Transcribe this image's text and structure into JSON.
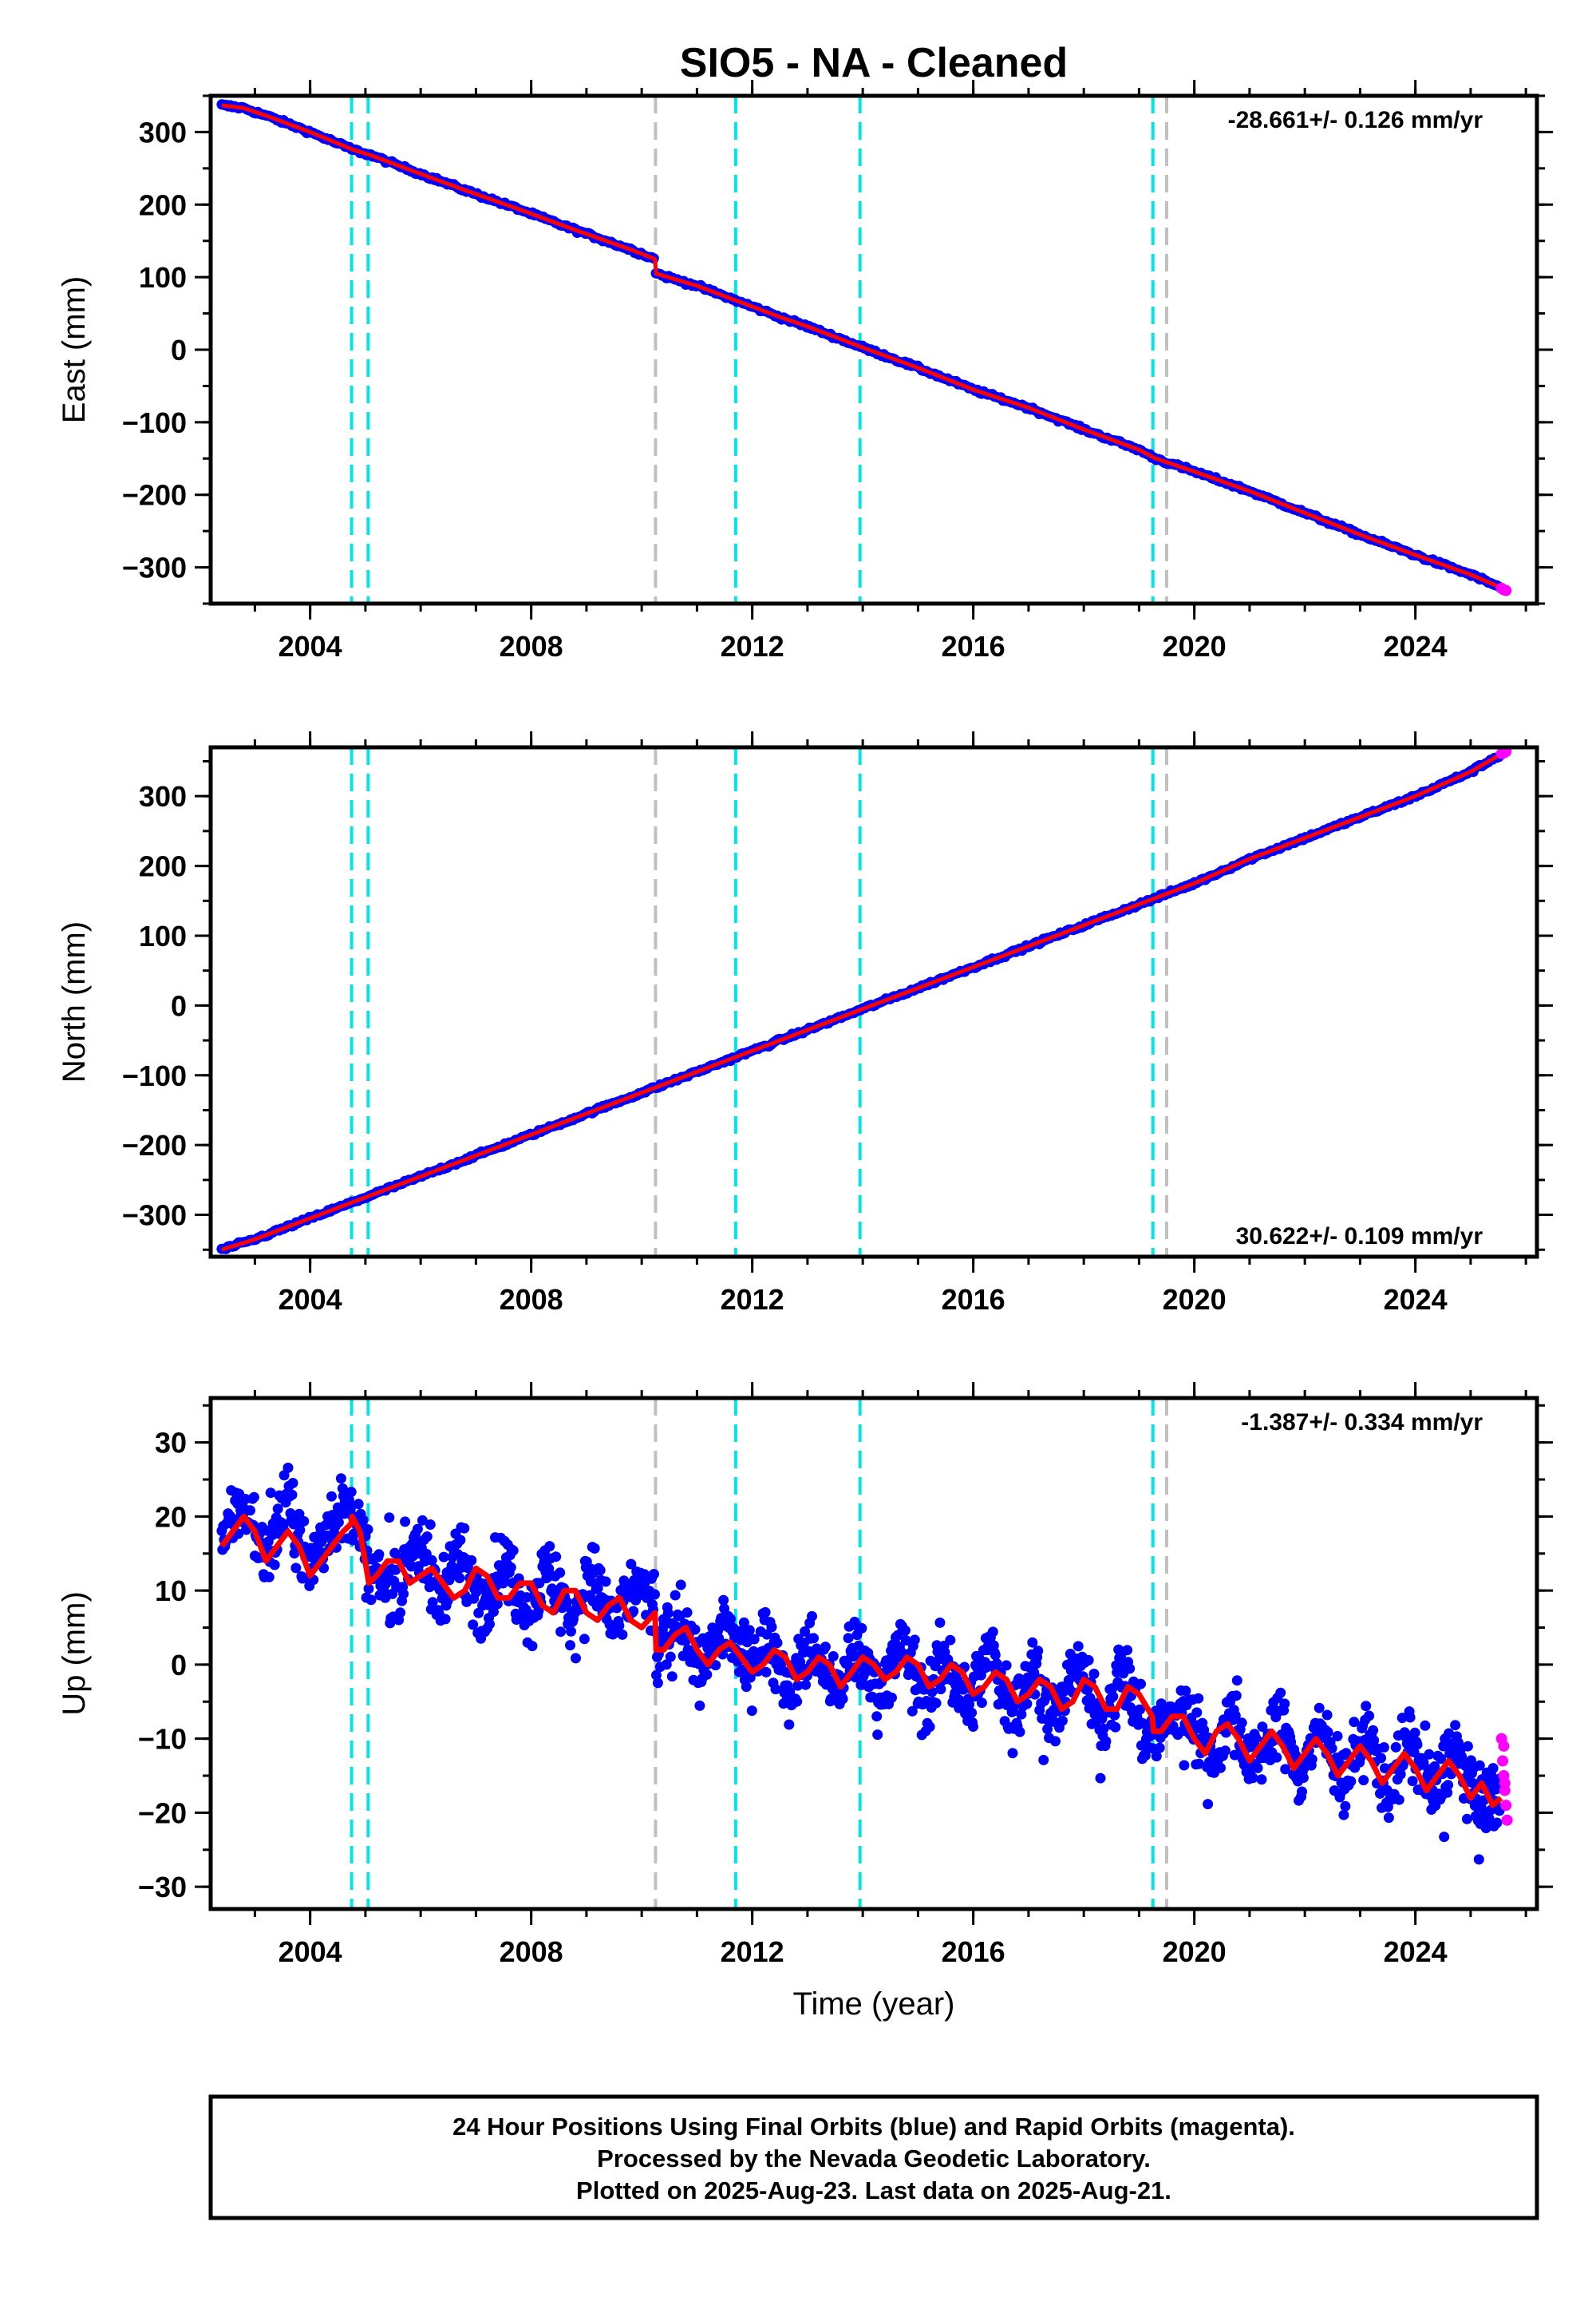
{
  "title": "SIO5  - NA - Cleaned",
  "footer": {
    "lines": [
      "24 Hour Positions Using Final Orbits (blue) and Rapid Orbits (magenta).",
      "Processed by the Nevada Geodetic Laboratory.",
      "Plotted on 2025-Aug-23. Last data on 2025-Aug-21."
    ]
  },
  "colors": {
    "final_orbits": "#0000ff",
    "rapid_orbits": "#ff00ff",
    "model_fit": "#ff0000",
    "equipment_change": "#00e5e5",
    "other_event": "#c0c0c0"
  },
  "chart_data": [
    {
      "type": "scatter",
      "ylabel": "East (mm)",
      "xlabel": "",
      "xlim": [
        2002.2,
        2026.2
      ],
      "ylim": [
        -350,
        350
      ],
      "xticks": [
        2004,
        2008,
        2012,
        2016,
        2020,
        2024
      ],
      "yticks": [
        300,
        200,
        100,
        0,
        -100,
        -200,
        -300
      ],
      "ytick_labels": [
        "300",
        "200",
        "100",
        "0",
        "−100",
        "−200",
        "−300"
      ],
      "rate_label": "-28.661+/- 0.126 mm/yr",
      "rate_position": "top-right",
      "equipment_changes": [
        2004.75,
        2005.05,
        2011.7,
        2013.95,
        2019.25
      ],
      "other_events": [
        2010.25,
        2019.5
      ],
      "series": {
        "final_x": [
          2002.4,
          2002.8,
          2003.3,
          2004.0,
          2004.8,
          2005.1,
          2005.8,
          2006.8,
          2007.8,
          2008.8,
          2009.8,
          2010.24,
          2010.26,
          2011.0,
          2011.7,
          2012.5,
          2013.0,
          2014.0,
          2015.0,
          2016.0,
          2017.0,
          2018.0,
          2019.0,
          2019.3,
          2020.0,
          2021.0,
          2022.0,
          2023.0,
          2024.0,
          2025.0,
          2025.55
        ],
        "final_y": [
          337,
          333,
          320,
          300,
          275,
          268,
          248,
          220,
          193,
          165,
          138,
          125,
          105,
          88,
          68,
          45,
          32,
          3,
          -25,
          -55,
          -80,
          -110,
          -138,
          -150,
          -168,
          -195,
          -225,
          -255,
          -283,
          -310,
          -328
        ],
        "rapid_x": [
          2025.56,
          2025.6,
          2025.64
        ],
        "rapid_y": [
          -329,
          -331,
          -332
        ]
      }
    },
    {
      "type": "scatter",
      "ylabel": "North (mm)",
      "xlabel": "",
      "xlim": [
        2002.2,
        2026.2
      ],
      "ylim": [
        -360,
        370
      ],
      "xticks": [
        2004,
        2008,
        2012,
        2016,
        2020,
        2024
      ],
      "yticks": [
        300,
        200,
        100,
        0,
        -100,
        -200,
        -300
      ],
      "ytick_labels": [
        "300",
        "200",
        "100",
        "0",
        "−100",
        "−200",
        "−300"
      ],
      "rate_label": "30.622+/- 0.109 mm/yr",
      "rate_position": "bottom-right",
      "equipment_changes": [
        2004.75,
        2005.05,
        2011.7,
        2013.95,
        2019.25
      ],
      "other_events": [
        2010.25,
        2019.5
      ],
      "series": {
        "final_x": [
          2002.4,
          2003.0,
          2004.0,
          2005.0,
          2006.0,
          2007.0,
          2008.0,
          2009.0,
          2010.0,
          2011.0,
          2012.0,
          2013.0,
          2014.0,
          2015.0,
          2016.0,
          2017.0,
          2018.0,
          2019.0,
          2020.0,
          2021.0,
          2022.0,
          2023.0,
          2024.0,
          2025.0,
          2025.55
        ],
        "final_y": [
          -350,
          -335,
          -305,
          -275,
          -245,
          -215,
          -185,
          -155,
          -125,
          -95,
          -65,
          -35,
          -5,
          25,
          55,
          85,
          115,
          145,
          175,
          210,
          240,
          270,
          300,
          335,
          360
        ],
        "rapid_x": [
          2025.56,
          2025.6,
          2025.64
        ],
        "rapid_y": [
          361,
          362,
          364
        ]
      }
    },
    {
      "type": "scatter",
      "ylabel": "Up (mm)",
      "xlabel": "Time (year)",
      "xlim": [
        2002.2,
        2026.2
      ],
      "ylim": [
        -33,
        36
      ],
      "xticks": [
        2004,
        2008,
        2012,
        2016,
        2020,
        2024
      ],
      "yticks": [
        30,
        20,
        10,
        0,
        -10,
        -20,
        -30
      ],
      "ytick_labels": [
        "30",
        "20",
        "10",
        "0",
        "−10",
        "−20",
        "−30"
      ],
      "rate_label": "-1.387+/- 0.334 mm/yr",
      "rate_position": "top-right",
      "equipment_changes": [
        2004.75,
        2005.05,
        2011.7,
        2013.95,
        2019.25
      ],
      "other_events": [
        2010.25,
        2019.5
      ],
      "series": {
        "final_x": [
          2002.4,
          2002.8,
          2003.2,
          2003.6,
          2004.0,
          2004.4,
          2004.8,
          2005.1,
          2005.5,
          2005.9,
          2006.3,
          2006.7,
          2007.1,
          2007.5,
          2007.9,
          2008.3,
          2008.7,
          2009.1,
          2009.5,
          2009.9,
          2010.24,
          2010.26,
          2010.7,
          2011.1,
          2011.5,
          2011.9,
          2012.3,
          2012.7,
          2013.1,
          2013.5,
          2013.9,
          2014.3,
          2014.7,
          2015.1,
          2015.5,
          2015.9,
          2016.3,
          2016.7,
          2017.1,
          2017.5,
          2017.9,
          2018.3,
          2018.7,
          2019.1,
          2019.5,
          2019.9,
          2020.3,
          2020.7,
          2021.1,
          2021.5,
          2021.9,
          2022.3,
          2022.7,
          2023.1,
          2023.5,
          2023.9,
          2024.3,
          2024.7,
          2025.1,
          2025.55
        ],
        "final_y": [
          17,
          22,
          15,
          22,
          13,
          20,
          21,
          12,
          10,
          17,
          9,
          15,
          8,
          14,
          7,
          13,
          6,
          12,
          5,
          11,
          8,
          1,
          6,
          -1,
          6,
          0,
          4,
          -3,
          3,
          -4,
          2,
          -4,
          3,
          -5,
          1,
          -6,
          2,
          -7,
          0,
          -8,
          1,
          -9,
          0,
          -10,
          -8,
          -6,
          -13,
          -6,
          -14,
          -7,
          -15,
          -8,
          -16,
          -9,
          -17,
          -10,
          -18,
          -11,
          -19,
          -17
        ],
        "fit_x": [
          2002.4,
          2002.6,
          2002.8,
          2003.0,
          2003.2,
          2003.4,
          2003.6,
          2003.8,
          2004.0,
          2004.2,
          2004.4,
          2004.6,
          2004.74,
          2004.76,
          2004.9,
          2005.04,
          2005.06,
          2005.2,
          2005.4,
          2005.6,
          2005.8,
          2006.0,
          2006.2,
          2006.4,
          2006.6,
          2006.8,
          2007.0,
          2007.2,
          2007.4,
          2007.6,
          2007.8,
          2008.0,
          2008.2,
          2008.4,
          2008.6,
          2008.8,
          2009.0,
          2009.2,
          2009.4,
          2009.6,
          2009.8,
          2010.0,
          2010.24,
          2010.26,
          2010.4,
          2010.6,
          2010.8,
          2011.0,
          2011.2,
          2011.4,
          2011.6,
          2011.8,
          2012.0,
          2012.2,
          2012.4,
          2012.6,
          2012.8,
          2013.0,
          2013.2,
          2013.4,
          2013.6,
          2013.8,
          2014.0,
          2014.2,
          2014.4,
          2014.6,
          2014.8,
          2015.0,
          2015.2,
          2015.4,
          2015.6,
          2015.8,
          2016.0,
          2016.2,
          2016.4,
          2016.6,
          2016.8,
          2017.0,
          2017.2,
          2017.4,
          2017.6,
          2017.8,
          2018.0,
          2018.2,
          2018.4,
          2018.6,
          2018.8,
          2019.0,
          2019.24,
          2019.26,
          2019.4,
          2019.6,
          2019.8,
          2020.0,
          2020.2,
          2020.4,
          2020.6,
          2020.8,
          2021.0,
          2021.2,
          2021.4,
          2021.6,
          2021.8,
          2022.0,
          2022.2,
          2022.4,
          2022.6,
          2022.8,
          2023.0,
          2023.2,
          2023.4,
          2023.6,
          2023.8,
          2024.0,
          2024.2,
          2024.4,
          2024.6,
          2024.8,
          2025.0,
          2025.2,
          2025.4,
          2025.55
        ],
        "fit_y": [
          16,
          18,
          20,
          18,
          14,
          16,
          18,
          16,
          12,
          14,
          16,
          18,
          19,
          20,
          18,
          12,
          11,
          12,
          14,
          14,
          11,
          12,
          13,
          11,
          9,
          10,
          13,
          12,
          9,
          9,
          11,
          11,
          8,
          7,
          10,
          10,
          7,
          6,
          8,
          9,
          6,
          5,
          7,
          2,
          2,
          4,
          5,
          2,
          0,
          2,
          3,
          1,
          -1,
          0,
          2,
          1,
          -2,
          -1,
          1,
          0,
          -3,
          -1,
          1,
          0,
          -2,
          -1,
          1,
          0,
          -3,
          -2,
          0,
          -1,
          -4,
          -3,
          -1,
          -2,
          -5,
          -4,
          -2,
          -3,
          -6,
          -5,
          -2,
          -3,
          -6,
          -6,
          -3,
          -4,
          -7,
          -9,
          -9,
          -7,
          -7,
          -10,
          -12,
          -9,
          -8,
          -10,
          -13,
          -11,
          -9,
          -11,
          -14,
          -12,
          -10,
          -12,
          -15,
          -13,
          -11,
          -13,
          -16,
          -14,
          -12,
          -14,
          -17,
          -15,
          -13,
          -15,
          -18,
          -16,
          -19,
          -18
        ],
        "rapid_x": [
          2025.56,
          2025.58,
          2025.6,
          2025.62,
          2025.64,
          2025.66,
          2025.6,
          2025.62
        ],
        "rapid_y": [
          -10,
          -13,
          -15,
          -17,
          -19,
          -21,
          -11,
          -16
        ]
      }
    }
  ]
}
